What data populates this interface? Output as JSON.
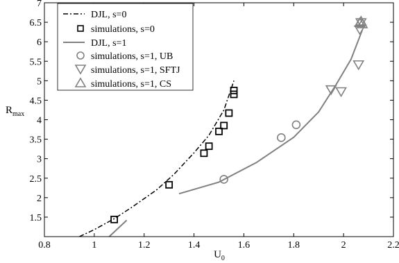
{
  "chart_data": {
    "type": "scatter",
    "xlabel": "U",
    "xlabel_sub": "0",
    "ylabel": "R",
    "ylabel_sub": "max",
    "xlim": [
      0.8,
      2.2
    ],
    "ylim": [
      1.0,
      7.0
    ],
    "xticks": [
      0.8,
      1,
      1.2,
      1.4,
      1.6,
      1.8,
      2,
      2.2
    ],
    "xtick_labels": [
      "0.8",
      "1",
      "1.2",
      "1.4",
      "1.6",
      "1.8",
      "2",
      "2.2"
    ],
    "yticks": [
      1.5,
      2,
      2.5,
      3,
      3.5,
      4,
      4.5,
      5,
      5.5,
      6,
      6.5,
      7
    ],
    "ytick_labels": [
      "1.5",
      "2",
      "2.5",
      "3",
      "3.5",
      "4",
      "4.5",
      "5",
      "5.5",
      "6",
      "6.5",
      "7"
    ],
    "legend_position": "top-left",
    "colors": {
      "black": "#000000",
      "gray": "#808080"
    },
    "series": [
      {
        "name": "DJL, s=0",
        "kind": "line",
        "style": "dashdot",
        "color": "#000000",
        "x": [
          0.94,
          1.0,
          1.08,
          1.15,
          1.25,
          1.32,
          1.4,
          1.46,
          1.52,
          1.56
        ],
        "y": [
          1.0,
          1.18,
          1.46,
          1.75,
          2.2,
          2.6,
          3.15,
          3.6,
          4.25,
          5.0
        ]
      },
      {
        "name": "simulations, s=0",
        "kind": "marker",
        "marker": "square",
        "color": "#000000",
        "x": [
          1.08,
          1.3,
          1.44,
          1.46,
          1.5,
          1.52,
          1.54,
          1.56,
          1.56
        ],
        "y": [
          1.44,
          2.33,
          3.14,
          3.32,
          3.7,
          3.85,
          4.17,
          4.65,
          4.75
        ]
      },
      {
        "name": "DJL, s=1",
        "kind": "line",
        "style": "solid",
        "color": "#808080",
        "segments": [
          {
            "x": [
              1.06,
              1.09,
              1.13
            ],
            "y": [
              1.0,
              1.18,
              1.42
            ]
          },
          {
            "x": [
              1.34,
              1.5,
              1.65,
              1.8,
              1.9,
              1.97,
              2.03,
              2.075
            ],
            "y": [
              2.1,
              2.4,
              2.9,
              3.55,
              4.2,
              4.9,
              5.55,
              6.3
            ]
          }
        ]
      },
      {
        "name": "simulations, s=1, UB",
        "kind": "marker",
        "marker": "circle",
        "color": "#808080",
        "x": [
          1.52,
          1.75,
          1.81
        ],
        "y": [
          2.47,
          3.54,
          3.87
        ]
      },
      {
        "name": "simulations, s=1, SFTJ",
        "kind": "marker",
        "marker": "triangle-down",
        "color": "#808080",
        "x": [
          1.95,
          1.99,
          2.06,
          2.065,
          2.07
        ],
        "y": [
          4.78,
          4.73,
          5.42,
          6.32,
          6.5
        ]
      },
      {
        "name": "simulations, s=1, CS",
        "kind": "marker",
        "marker": "triangle-up",
        "color": "#808080",
        "x": [
          2.065,
          2.07,
          2.075
        ],
        "y": [
          6.48,
          6.52,
          6.45
        ]
      }
    ]
  }
}
